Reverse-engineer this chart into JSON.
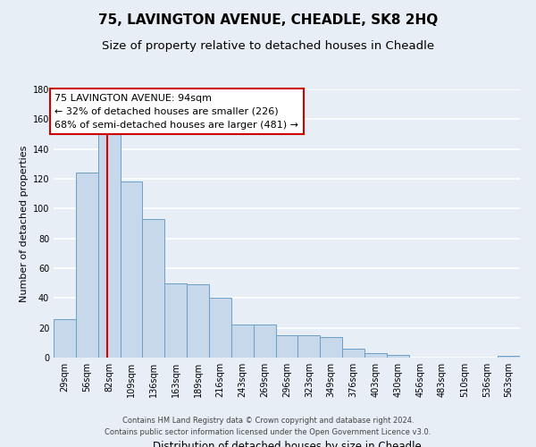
{
  "title1": "75, LAVINGTON AVENUE, CHEADLE, SK8 2HQ",
  "title2": "Size of property relative to detached houses in Cheadle",
  "xlabel": "Distribution of detached houses by size in Cheadle",
  "ylabel": "Number of detached properties",
  "bin_labels": [
    "29sqm",
    "56sqm",
    "82sqm",
    "109sqm",
    "136sqm",
    "163sqm",
    "189sqm",
    "216sqm",
    "243sqm",
    "269sqm",
    "296sqm",
    "323sqm",
    "349sqm",
    "376sqm",
    "403sqm",
    "430sqm",
    "456sqm",
    "483sqm",
    "510sqm",
    "536sqm",
    "563sqm"
  ],
  "bar_heights": [
    26,
    124,
    150,
    118,
    93,
    50,
    49,
    40,
    22,
    22,
    15,
    15,
    14,
    6,
    3,
    2,
    0,
    0,
    0,
    0,
    1
  ],
  "bar_color": "#c8d8eb",
  "bar_edge_color": "#6a9fc8",
  "red_line_color": "#dd0000",
  "ylim": [
    0,
    180
  ],
  "yticks": [
    0,
    20,
    40,
    60,
    80,
    100,
    120,
    140,
    160,
    180
  ],
  "annotation_title": "75 LAVINGTON AVENUE: 94sqm",
  "annotation_line1": "← 32% of detached houses are smaller (226)",
  "annotation_line2": "68% of semi-detached houses are larger (481) →",
  "annotation_box_color": "#ffffff",
  "annotation_box_edge_color": "#cc0000",
  "background_color": "#e8eef5",
  "plot_bg_color": "#e8eef5",
  "grid_color": "#ffffff",
  "footer1": "Contains HM Land Registry data © Crown copyright and database right 2024.",
  "footer2": "Contains public sector information licensed under the Open Government Licence v3.0.",
  "title_fontsize": 11,
  "subtitle_fontsize": 9.5,
  "ylabel_fontsize": 8,
  "xlabel_fontsize": 8.5,
  "tick_fontsize": 7,
  "annotation_fontsize": 8,
  "footer_fontsize": 6
}
